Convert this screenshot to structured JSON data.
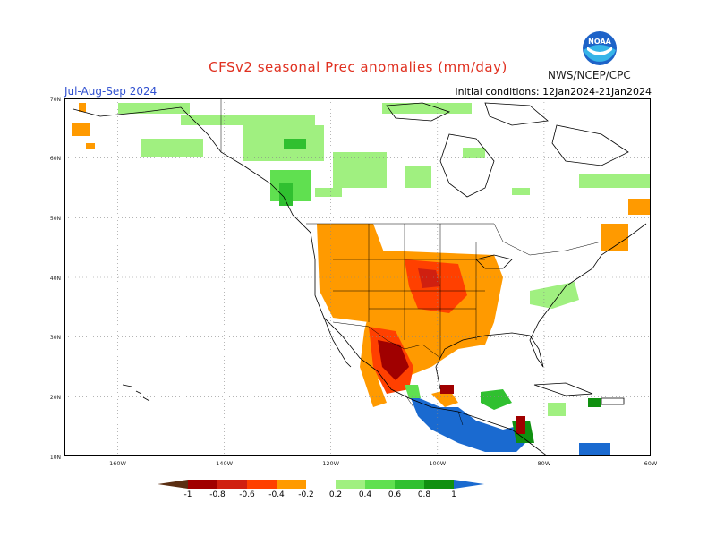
{
  "title": "CFSv2 seasonal Prec anomalies (mm/day)",
  "season": "Jul-Aug-Sep 2024",
  "initial_conditions": "Initial conditions: 12Jan2024-21Jan2024",
  "agency": "NWS/NCEP/CPC",
  "logo_text": "NOAA",
  "lat_labels": [
    "70N",
    "60N",
    "50N",
    "40N",
    "30N",
    "20N",
    "10N"
  ],
  "lon_labels": [
    "160W",
    "140W",
    "120W",
    "100W",
    "80W",
    "60W"
  ],
  "colorbar": {
    "labels": [
      "-1",
      "-0.8",
      "-0.6",
      "-0.4",
      "-0.2",
      "0.2",
      "0.4",
      "0.6",
      "0.8",
      "1"
    ],
    "colors": [
      "#5a2e12",
      "#a00000",
      "#d02010",
      "#ff4000",
      "#ff9a00",
      "#ffffff",
      "#a0f080",
      "#60e050",
      "#30c030",
      "#109010",
      "#1a6ad0"
    ]
  },
  "map_region": {
    "lon_range": [
      -170,
      -60
    ],
    "lat_range": [
      10,
      70
    ]
  }
}
